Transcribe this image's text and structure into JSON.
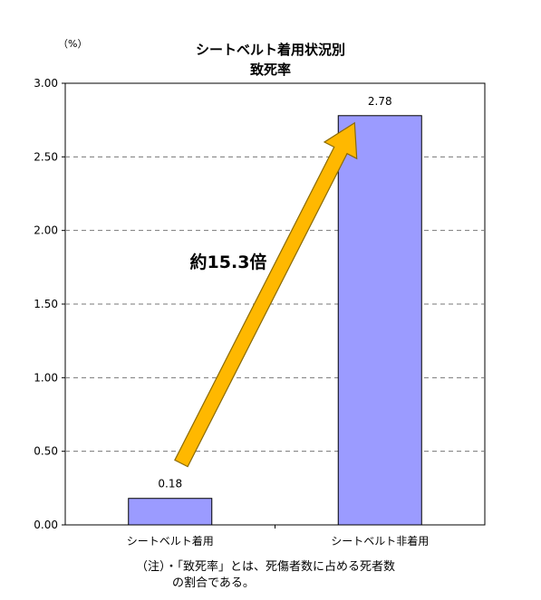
{
  "unit_label": "（%）",
  "chart_data": {
    "type": "bar",
    "title": "シートベルト着用状況別",
    "subtitle": "致死率",
    "categories": [
      "シートベルト着用",
      "シートベルト非着用"
    ],
    "values": [
      0.18,
      2.78
    ],
    "value_labels": [
      "0.18",
      "2.78"
    ],
    "ylim": [
      0,
      3.0
    ],
    "yticks": [
      "0.00",
      "0.50",
      "1.00",
      "1.50",
      "2.00",
      "2.50",
      "3.00"
    ],
    "grid": true,
    "bar_color": "#9b9bff",
    "arrow_color": "#ffb800",
    "annotation": "約15.3倍"
  },
  "note": {
    "prefix": "（注）",
    "line1": "・「致死率」とは、死傷者数に占める死者数",
    "line2": "の割合である。"
  }
}
